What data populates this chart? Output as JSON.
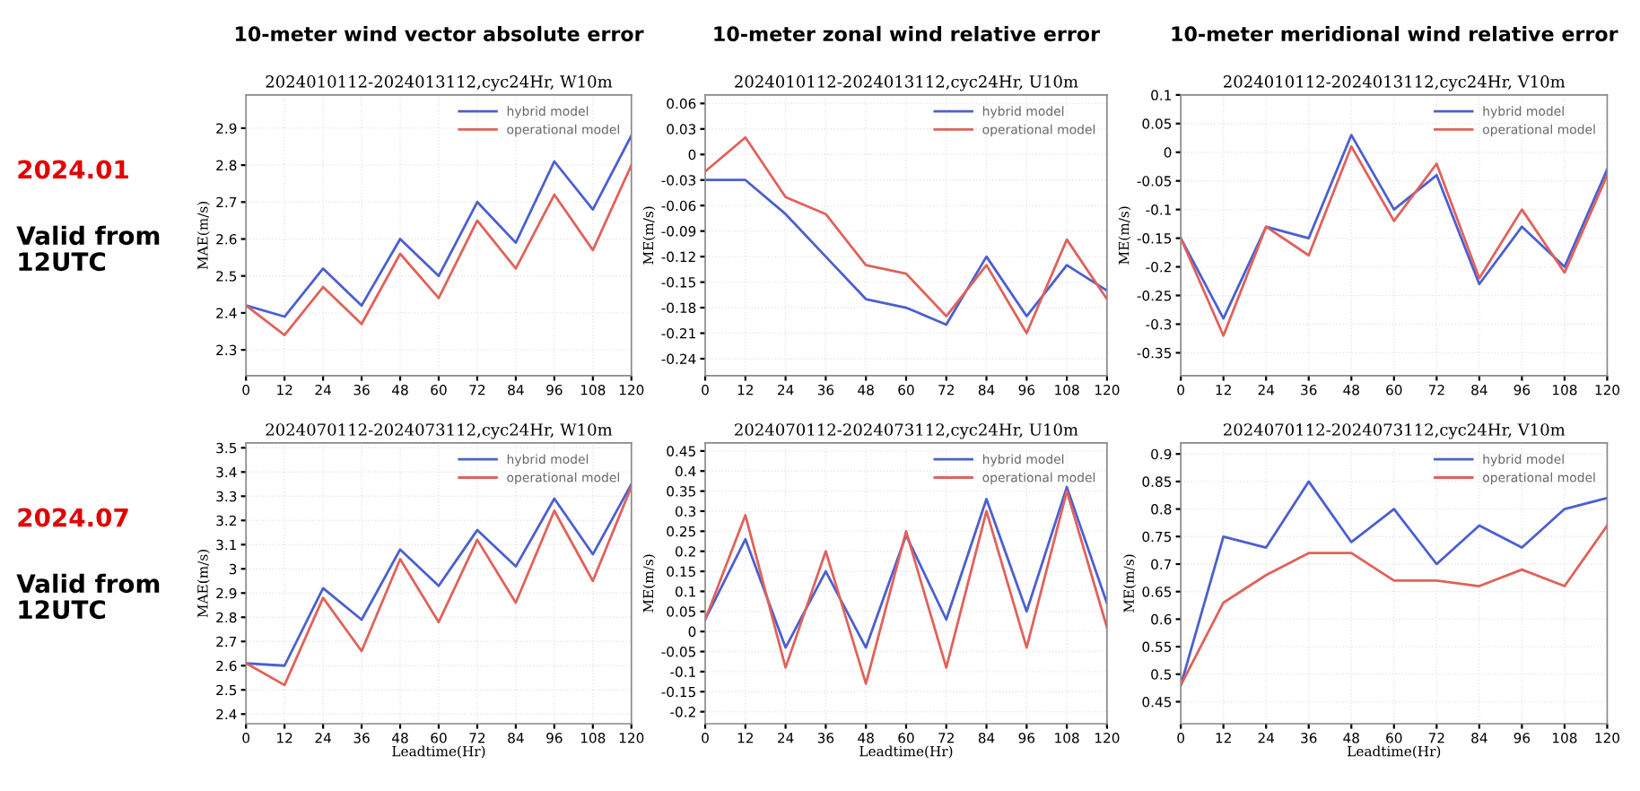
{
  "chart_data": [
    {
      "type": "line",
      "title": "10-meter wind vector absolute error",
      "subtitle": "2024010112-2024013112,cyc24Hr, W10m",
      "ylabel": "MAE(m/s)",
      "annotations": [
        "2024.01",
        "Valid from\n12UTC"
      ],
      "x": [
        0,
        12,
        24,
        36,
        48,
        60,
        72,
        84,
        96,
        108,
        120
      ],
      "xlim": [
        0,
        120
      ],
      "xticks": [
        0,
        12,
        24,
        36,
        48,
        60,
        72,
        84,
        96,
        108,
        120
      ],
      "ylim": [
        2.23,
        2.99
      ],
      "yticks": [
        2.3,
        2.4,
        2.5,
        2.6,
        2.7,
        2.8,
        2.9
      ],
      "grid": true,
      "legend": "top right",
      "series": [
        {
          "name": "hybrid model",
          "color": "#4a5fd0",
          "values": [
            2.42,
            2.39,
            2.52,
            2.42,
            2.6,
            2.5,
            2.7,
            2.59,
            2.81,
            2.68,
            2.88
          ]
        },
        {
          "name": "operational model",
          "color": "#e0625a",
          "values": [
            2.42,
            2.34,
            2.47,
            2.37,
            2.56,
            2.44,
            2.65,
            2.52,
            2.72,
            2.57,
            2.8
          ]
        }
      ]
    },
    {
      "type": "line",
      "title": "10-meter zonal wind relative error",
      "subtitle": "2024010112-2024013112,cyc24Hr, U10m",
      "ylabel": "ME(m/s)",
      "x": [
        0,
        12,
        24,
        36,
        48,
        60,
        72,
        84,
        96,
        108,
        120
      ],
      "xlim": [
        0,
        120
      ],
      "xticks": [
        0,
        12,
        24,
        36,
        48,
        60,
        72,
        84,
        96,
        108,
        120
      ],
      "ylim": [
        -0.26,
        0.07
      ],
      "yticks": [
        0.06,
        0.03,
        0,
        -0.03,
        -0.06,
        -0.09,
        -0.12,
        -0.15,
        -0.18,
        -0.21,
        -0.24
      ],
      "grid": true,
      "legend": "top right",
      "series": [
        {
          "name": "hybrid model",
          "color": "#4a5fd0",
          "values": [
            -0.03,
            -0.03,
            -0.07,
            -0.12,
            -0.17,
            -0.18,
            -0.2,
            -0.12,
            -0.19,
            -0.13,
            -0.16
          ]
        },
        {
          "name": "operational model",
          "color": "#e0625a",
          "values": [
            -0.02,
            0.02,
            -0.05,
            -0.07,
            -0.13,
            -0.14,
            -0.19,
            -0.13,
            -0.21,
            -0.1,
            -0.17
          ]
        }
      ]
    },
    {
      "type": "line",
      "title": "10-meter meridional wind relative error",
      "subtitle": "2024010112-2024013112,cyc24Hr, V10m",
      "ylabel": "ME(m/s)",
      "x": [
        0,
        12,
        24,
        36,
        48,
        60,
        72,
        84,
        96,
        108,
        120
      ],
      "xlim": [
        0,
        120
      ],
      "xticks": [
        0,
        12,
        24,
        36,
        48,
        60,
        72,
        84,
        96,
        108,
        120
      ],
      "ylim": [
        -0.39,
        0.1
      ],
      "yticks": [
        0.1,
        0.05,
        0,
        -0.05,
        -0.1,
        -0.15,
        -0.2,
        -0.25,
        -0.3,
        -0.35
      ],
      "grid": true,
      "legend": "top right",
      "series": [
        {
          "name": "hybrid model",
          "color": "#4a5fd0",
          "values": [
            -0.15,
            -0.29,
            -0.13,
            -0.15,
            0.03,
            -0.1,
            -0.04,
            -0.23,
            -0.13,
            -0.2,
            -0.03
          ]
        },
        {
          "name": "operational model",
          "color": "#e0625a",
          "values": [
            -0.15,
            -0.32,
            -0.13,
            -0.18,
            0.01,
            -0.12,
            -0.02,
            -0.22,
            -0.1,
            -0.21,
            -0.04
          ]
        }
      ]
    },
    {
      "type": "line",
      "title": "2024070112-2024073112,cyc24Hr, W10m",
      "ylabel": "MAE(m/s)",
      "xlabel": "Leadtime(Hr)",
      "annotations": [
        "2024.07",
        "Valid from\n12UTC"
      ],
      "x": [
        0,
        12,
        24,
        36,
        48,
        60,
        72,
        84,
        96,
        108,
        120
      ],
      "xlim": [
        0,
        120
      ],
      "xticks": [
        0,
        12,
        24,
        36,
        48,
        60,
        72,
        84,
        96,
        108,
        120
      ],
      "ylim": [
        2.36,
        3.52
      ],
      "yticks": [
        2.4,
        2.5,
        2.6,
        2.7,
        2.8,
        2.9,
        3,
        3.1,
        3.2,
        3.3,
        3.4,
        3.5
      ],
      "grid": true,
      "legend": "top right",
      "series": [
        {
          "name": "hybrid model",
          "color": "#4a5fd0",
          "values": [
            2.61,
            2.6,
            2.92,
            2.79,
            3.08,
            2.93,
            3.16,
            3.01,
            3.29,
            3.06,
            3.35
          ]
        },
        {
          "name": "operational model",
          "color": "#e0625a",
          "values": [
            2.61,
            2.52,
            2.88,
            2.66,
            3.04,
            2.78,
            3.12,
            2.86,
            3.24,
            2.95,
            3.34
          ]
        }
      ]
    },
    {
      "type": "line",
      "title": "2024070112-2024073112,cyc24Hr, U10m",
      "ylabel": "ME(m/s)",
      "xlabel": "Leadtime(Hr)",
      "x": [
        0,
        12,
        24,
        36,
        48,
        60,
        72,
        84,
        96,
        108,
        120
      ],
      "xlim": [
        0,
        120
      ],
      "xticks": [
        0,
        12,
        24,
        36,
        48,
        60,
        72,
        84,
        96,
        108,
        120
      ],
      "ylim": [
        -0.23,
        0.47
      ],
      "yticks": [
        0.45,
        0.4,
        0.35,
        0.3,
        0.25,
        0.2,
        0.15,
        0.1,
        0.05,
        0,
        -0.05,
        -0.1,
        -0.15,
        -0.2
      ],
      "grid": true,
      "legend": "top right",
      "series": [
        {
          "name": "hybrid model",
          "color": "#4a5fd0",
          "values": [
            0.03,
            0.23,
            -0.04,
            0.15,
            -0.04,
            0.24,
            0.03,
            0.33,
            0.05,
            0.36,
            0.07
          ]
        },
        {
          "name": "operational model",
          "color": "#e0625a",
          "values": [
            0.03,
            0.29,
            -0.09,
            0.2,
            -0.13,
            0.25,
            -0.09,
            0.3,
            -0.04,
            0.35,
            0.01
          ]
        }
      ]
    },
    {
      "type": "line",
      "title": "2024070112-2024073112,cyc24Hr, V10m",
      "ylabel": "ME(m/s)",
      "xlabel": "Leadtime(Hr)",
      "x": [
        0,
        12,
        24,
        36,
        48,
        60,
        72,
        84,
        96,
        108,
        120
      ],
      "xlim": [
        0,
        120
      ],
      "xticks": [
        0,
        12,
        24,
        36,
        48,
        60,
        72,
        84,
        96,
        108,
        120
      ],
      "ylim": [
        0.41,
        0.92
      ],
      "yticks": [
        0.45,
        0.5,
        0.55,
        0.6,
        0.65,
        0.7,
        0.75,
        0.8,
        0.85,
        0.9
      ],
      "grid": true,
      "legend": "top right",
      "series": [
        {
          "name": "hybrid model",
          "color": "#4a5fd0",
          "values": [
            0.48,
            0.75,
            0.73,
            0.85,
            0.74,
            0.8,
            0.7,
            0.77,
            0.73,
            0.8,
            0.82
          ]
        },
        {
          "name": "operational model",
          "color": "#e0625a",
          "values": [
            0.48,
            0.63,
            0.68,
            0.72,
            0.72,
            0.67,
            0.67,
            0.66,
            0.69,
            0.66,
            0.77
          ]
        }
      ]
    }
  ]
}
